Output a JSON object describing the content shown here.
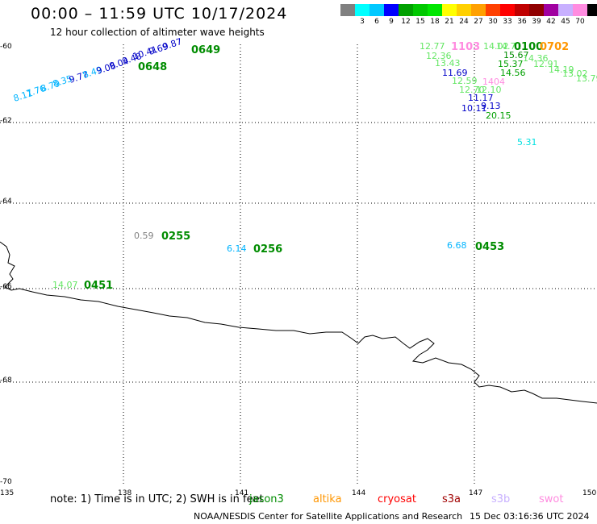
{
  "header": {
    "title": "00:00 – 11:59 UTC 10/17/2024",
    "subtitle": "12 hour collection of altimeter wave heights"
  },
  "legend": {
    "unit": "(ft)",
    "items": [
      {
        "label": "",
        "color": "#808080"
      },
      {
        "label": "3",
        "color": "#00ffff"
      },
      {
        "label": "6",
        "color": "#00c8ff"
      },
      {
        "label": "9",
        "color": "#0000ff"
      },
      {
        "label": "12",
        "color": "#00a000"
      },
      {
        "label": "15",
        "color": "#00c800"
      },
      {
        "label": "18",
        "color": "#00e600"
      },
      {
        "label": "21",
        "color": "#ffff00"
      },
      {
        "label": "24",
        "color": "#ffd000"
      },
      {
        "label": "27",
        "color": "#ffa000"
      },
      {
        "label": "30",
        "color": "#ff4000"
      },
      {
        "label": "33",
        "color": "#ff0000"
      },
      {
        "label": "36",
        "color": "#c00000"
      },
      {
        "label": "39",
        "color": "#900000"
      },
      {
        "label": "42",
        "color": "#a000a0"
      },
      {
        "label": "45",
        "color": "#c8b0ff"
      },
      {
        "label": "70",
        "color": "#ff8ce0"
      },
      {
        "label": "",
        "color": "#000000"
      }
    ]
  },
  "map": {
    "lat_labels": [
      "-60",
      "-62",
      "-64",
      "-66",
      "-68",
      "-70"
    ],
    "lon_labels": [
      "135",
      "138",
      "141",
      "144",
      "147",
      "150"
    ],
    "wave_heights": [
      {
        "text": "8.11",
        "color": "#00b4ff"
      },
      {
        "text": "7.76",
        "color": "#00b4ff"
      },
      {
        "text": "8.79",
        "color": "#00b4ff"
      },
      {
        "text": "8.35",
        "color": "#00b4ff"
      },
      {
        "text": "9.77",
        "color": "#0000c8"
      },
      {
        "text": "8.49",
        "color": "#00b4ff"
      },
      {
        "text": "9.06",
        "color": "#0000c8"
      },
      {
        "text": "9.04",
        "color": "#0000c8"
      },
      {
        "text": "9.48",
        "color": "#0000c8"
      },
      {
        "text": "10.41",
        "color": "#0000c8"
      },
      {
        "text": "9.69",
        "color": "#0000c8"
      },
      {
        "text": "9.87",
        "color": "#0000c8"
      },
      {
        "text": "0.59",
        "color": "#808080"
      },
      {
        "text": "6.14",
        "color": "#00b4ff"
      },
      {
        "text": "6.68",
        "color": "#00b4ff"
      },
      {
        "text": "14.07",
        "color": "#64e664"
      },
      {
        "text": "5.31",
        "color": "#00e0e0"
      },
      {
        "text": "12.77",
        "color": "#64e664"
      },
      {
        "text": "12.36",
        "color": "#64e664"
      },
      {
        "text": "13.43",
        "color": "#64e664"
      },
      {
        "text": "11.69",
        "color": "#0000c8"
      },
      {
        "text": "12.59",
        "color": "#64e664"
      },
      {
        "text": "12.70",
        "color": "#64e664"
      },
      {
        "text": "12.10",
        "color": "#64e664"
      },
      {
        "text": "11.17",
        "color": "#0000c8"
      },
      {
        "text": "10.11",
        "color": "#0000c8"
      },
      {
        "text": "9.13",
        "color": "#0000c8"
      },
      {
        "text": "20.15",
        "color": "#00a000"
      },
      {
        "text": "14.02",
        "color": "#64e664"
      },
      {
        "text": "14.71",
        "color": "#64e664"
      },
      {
        "text": "15.67",
        "color": "#008c00"
      },
      {
        "text": "15.37",
        "color": "#00a000"
      },
      {
        "text": "14.36",
        "color": "#64e664"
      },
      {
        "text": "14.56",
        "color": "#00a000"
      },
      {
        "text": "12.91",
        "color": "#64e664"
      },
      {
        "text": "14.19",
        "color": "#64e664"
      },
      {
        "text": "13.02",
        "color": "#64e664"
      },
      {
        "text": "13.79",
        "color": "#64e664"
      },
      {
        "text": "1404",
        "color": "#ff8ce0"
      }
    ],
    "time_labels": [
      {
        "text": "0649",
        "color": "#008c00"
      },
      {
        "text": "0648",
        "color": "#008c00"
      },
      {
        "text": "0255",
        "color": "#008c00"
      },
      {
        "text": "0256",
        "color": "#008c00"
      },
      {
        "text": "0453",
        "color": "#008c00"
      },
      {
        "text": "0451",
        "color": "#008c00"
      },
      {
        "text": "1103",
        "color": "#ff8ce0"
      },
      {
        "text": "0100",
        "color": "#008c00"
      },
      {
        "text": "0702",
        "color": "#ff9600"
      }
    ]
  },
  "footer": {
    "note": "note: 1) Time is in UTC; 2) SWH is in feet",
    "satellites": [
      {
        "name": "jason3",
        "color": "#008c00"
      },
      {
        "name": "altika",
        "color": "#ff9600"
      },
      {
        "name": "cryosat",
        "color": "#ff0000"
      },
      {
        "name": "s3a",
        "color": "#a00000"
      },
      {
        "name": "s3b",
        "color": "#c8b0ff"
      },
      {
        "name": "swot",
        "color": "#ff8ce0"
      }
    ],
    "credit": "NOAA/NESDIS Center for Satellite Applications and Research",
    "timestamp": "15 Dec 03:16:36 UTC 2024"
  }
}
